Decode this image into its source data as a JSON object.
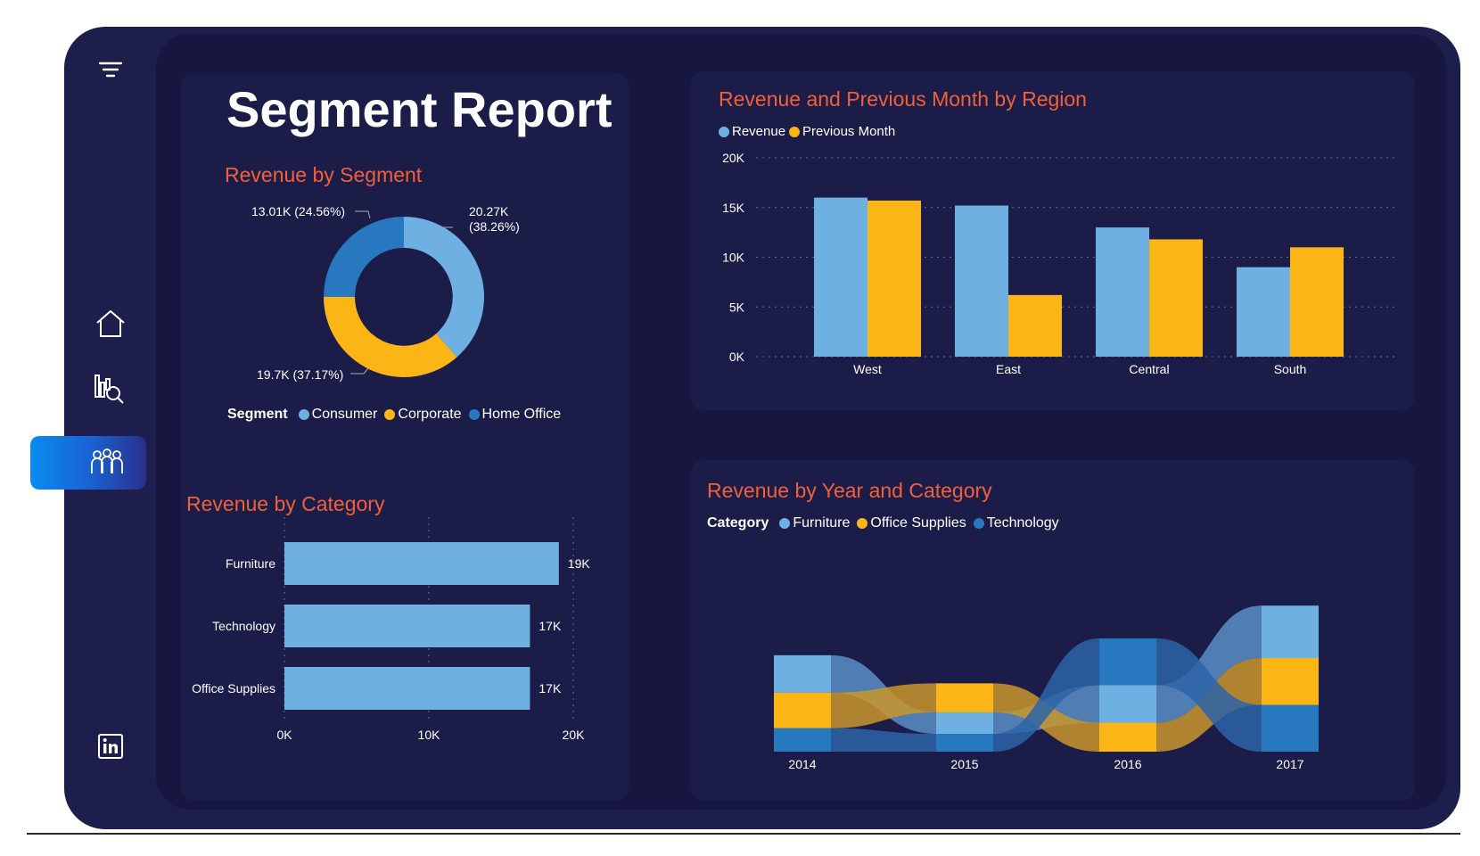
{
  "sidebar": {
    "items": [
      {
        "name": "filter-icon"
      },
      {
        "name": "home-icon"
      },
      {
        "name": "report-search-icon"
      },
      {
        "name": "people-icon",
        "active": true
      },
      {
        "name": "linkedin-icon"
      }
    ]
  },
  "report": {
    "title": "Segment Report"
  },
  "colors": {
    "light_blue": "#6fb0e2",
    "yellow": "#fbb616",
    "dark_blue": "#2878c0",
    "title_orange": "#f0603a"
  },
  "segment_chart": {
    "title": "Revenue by Segment",
    "legend_title": "Segment",
    "legend": [
      "Consumer",
      "Corporate",
      "Home Office"
    ],
    "labels": {
      "consumer": "20.27K\n(38.26%)",
      "corporate": "19.7K (37.17%)",
      "home_office": "13.01K (24.56%)"
    }
  },
  "category_chart": {
    "title": "Revenue by Category",
    "tick_labels": [
      "0K",
      "10K",
      "20K"
    ],
    "value_labels": [
      "19K",
      "17K",
      "17K"
    ]
  },
  "region_chart": {
    "title": "Revenue and Previous Month by Region",
    "legend": [
      "Revenue",
      "Previous Month"
    ],
    "y_ticks": [
      "20K",
      "15K",
      "10K",
      "5K",
      "0K"
    ]
  },
  "ribbon_chart": {
    "title": "Revenue by Year and Category",
    "legend_title": "Category",
    "legend": [
      "Furniture",
      "Office Supplies",
      "Technology"
    ]
  },
  "chart_data": [
    {
      "type": "pie",
      "variant": "donut",
      "title": "Revenue by Segment",
      "categories": [
        "Consumer",
        "Corporate",
        "Home Office"
      ],
      "values": [
        20.27,
        19.7,
        13.01
      ],
      "percents": [
        38.26,
        37.17,
        24.56
      ],
      "unit": "K",
      "legend": "bottom"
    },
    {
      "type": "bar",
      "orientation": "horizontal",
      "title": "Revenue by Category",
      "categories": [
        "Furniture",
        "Technology",
        "Office Supplies"
      ],
      "values": [
        19,
        17,
        17
      ],
      "xlim": [
        0,
        20
      ],
      "unit": "K",
      "grid": true
    },
    {
      "type": "bar",
      "title": "Revenue and Previous Month by Region",
      "categories": [
        "West",
        "East",
        "Central",
        "South"
      ],
      "series": [
        {
          "name": "Revenue",
          "values": [
            16,
            15.2,
            13,
            9
          ]
        },
        {
          "name": "Previous Month",
          "values": [
            15.7,
            6.2,
            11.8,
            11
          ]
        }
      ],
      "ylim": [
        0,
        20
      ],
      "unit": "K",
      "grid": true,
      "legend": "top-left"
    },
    {
      "type": "area",
      "variant": "ribbon",
      "title": "Revenue by Year and Category",
      "categories": [
        "2014",
        "2015",
        "2016",
        "2017"
      ],
      "series": [
        {
          "name": "Furniture",
          "values": [
            4.0,
            2.3,
            4.0,
            5.6
          ]
        },
        {
          "name": "Office Supplies",
          "values": [
            3.8,
            3.1,
            3.1,
            5.0
          ]
        },
        {
          "name": "Technology",
          "values": [
            2.5,
            1.9,
            5.0,
            5.0
          ]
        }
      ],
      "legend": "top-left"
    }
  ]
}
